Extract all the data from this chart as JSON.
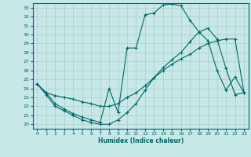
{
  "xlabel": "Humidex (Indice chaleur)",
  "background_color": "#c8e8e8",
  "grid_color": "#a8cccc",
  "line_color": "#006666",
  "xlim": [
    -0.5,
    23.5
  ],
  "ylim": [
    19.5,
    33.5
  ],
  "xticks": [
    0,
    1,
    2,
    3,
    4,
    5,
    6,
    7,
    8,
    9,
    10,
    11,
    12,
    13,
    14,
    15,
    16,
    17,
    18,
    19,
    20,
    21,
    22,
    23
  ],
  "yticks": [
    20,
    21,
    22,
    23,
    24,
    25,
    26,
    27,
    28,
    29,
    30,
    31,
    32,
    33
  ],
  "curve1_x": [
    0,
    1,
    2,
    3,
    4,
    5,
    6,
    7,
    8,
    9,
    10,
    11,
    12,
    13,
    14,
    15,
    16,
    17,
    18,
    19,
    20,
    21,
    22,
    23
  ],
  "curve1_y": [
    24.5,
    23.5,
    22.3,
    21.7,
    21.2,
    20.8,
    20.5,
    20.2,
    24.0,
    21.3,
    28.5,
    28.5,
    32.2,
    32.4,
    33.3,
    33.4,
    33.2,
    31.6,
    30.3,
    29.3,
    26.0,
    23.8,
    25.3,
    23.5
  ],
  "curve2_x": [
    0,
    1,
    2,
    3,
    4,
    5,
    6,
    7,
    8,
    9,
    10,
    11,
    12,
    13,
    14,
    15,
    16,
    17,
    18,
    19,
    20,
    21,
    22,
    23
  ],
  "curve2_y": [
    24.5,
    23.5,
    23.2,
    23.0,
    22.8,
    22.5,
    22.3,
    22.0,
    22.0,
    22.3,
    23.0,
    23.5,
    24.3,
    25.2,
    26.0,
    26.7,
    27.3,
    27.8,
    28.5,
    29.0,
    29.3,
    29.5,
    29.5,
    23.5
  ],
  "curve3_x": [
    0,
    1,
    2,
    3,
    4,
    5,
    6,
    7,
    8,
    9,
    10,
    11,
    12,
    13,
    14,
    15,
    16,
    17,
    18,
    19,
    20,
    21,
    22,
    23
  ],
  "curve3_y": [
    24.5,
    23.3,
    22.0,
    21.5,
    21.0,
    20.5,
    20.2,
    20.0,
    20.0,
    20.5,
    21.3,
    22.3,
    23.8,
    25.2,
    26.3,
    27.2,
    28.0,
    29.2,
    30.3,
    30.7,
    29.5,
    26.2,
    23.3,
    23.5
  ]
}
